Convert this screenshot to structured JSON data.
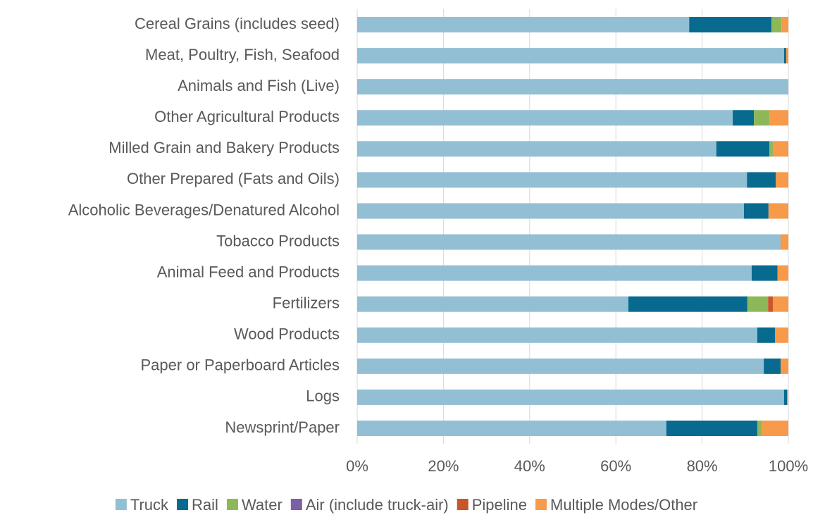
{
  "chart_data": {
    "type": "stacked-bar-horizontal",
    "categories": [
      "Cereal Grains (includes seed)",
      "Meat, Poultry, Fish, Seafood",
      "Animals and Fish (Live)",
      "Other Agricultural Products",
      "Milled Grain and Bakery Products",
      "Other Prepared (Fats and Oils)",
      "Alcoholic Beverages/Denatured Alcohol",
      "Tobacco Products",
      "Animal Feed and Products",
      "Fertilizers",
      "Wood Products",
      "Paper or Paperboard Articles",
      "Logs",
      "Newsprint/Paper"
    ],
    "series": [
      {
        "name": "Truck",
        "color": "#92bfd3",
        "values": [
          77.0,
          99.0,
          100,
          87.1,
          83.3,
          90.4,
          89.7,
          98.2,
          91.5,
          62.9,
          92.8,
          94.3,
          99.0,
          71.7
        ]
      },
      {
        "name": "Rail",
        "color": "#086a8f",
        "values": [
          19.1,
          0.5,
          0,
          4.9,
          12.3,
          6.7,
          5.7,
          0,
          6.0,
          27.6,
          4.1,
          3.9,
          0.7,
          21.1
        ]
      },
      {
        "name": "Water",
        "color": "#8db85a",
        "values": [
          2.3,
          0,
          0,
          3.6,
          0.8,
          0,
          0,
          0,
          0,
          4.8,
          0,
          0,
          0,
          1.0
        ]
      },
      {
        "name": "Air (include truck-air)",
        "color": "#7c5fa6",
        "values": [
          0,
          0,
          0,
          0,
          0,
          0,
          0,
          0,
          0,
          0,
          0,
          0,
          0,
          0
        ]
      },
      {
        "name": "Pipeline",
        "color": "#c8562a",
        "values": [
          0,
          0,
          0,
          0,
          0,
          0,
          0,
          0,
          0,
          1.1,
          0,
          0,
          0,
          0
        ]
      },
      {
        "name": "Multiple Modes/Other",
        "color": "#f79a4a",
        "values": [
          1.6,
          0.5,
          0,
          4.4,
          3.6,
          2.9,
          4.6,
          1.8,
          2.5,
          3.6,
          3.1,
          1.8,
          0.3,
          6.2
        ]
      }
    ],
    "xlim": [
      0,
      100
    ],
    "xticks": [
      {
        "value": 0,
        "label": "0%"
      },
      {
        "value": 20,
        "label": "20%"
      },
      {
        "value": 40,
        "label": "40%"
      },
      {
        "value": 60,
        "label": "60%"
      },
      {
        "value": 80,
        "label": "80%"
      },
      {
        "value": 100,
        "label": "100%"
      }
    ],
    "grid": true,
    "legend": "bottom"
  }
}
